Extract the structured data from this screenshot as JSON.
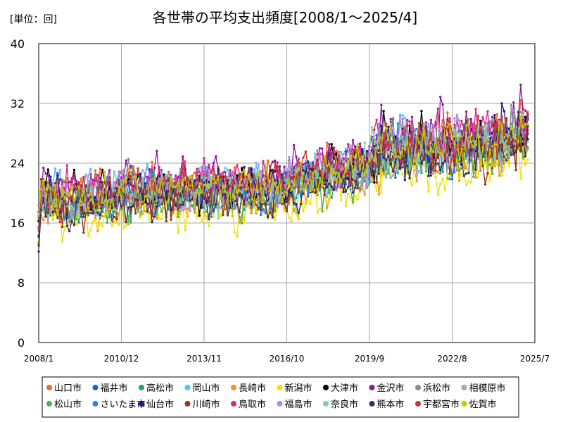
{
  "chart_data": {
    "type": "line",
    "title": "各世帯の平均支出頻度[2008/1～2025/4]",
    "unit_label": "[単位：回]",
    "x_range": [
      "2008-01",
      "2025-07"
    ],
    "x_ticks": [
      "2008/1",
      "2010/12",
      "2013/11",
      "2016/10",
      "2019/9",
      "2022/8",
      "2025/7"
    ],
    "x_tick_months": [
      0,
      35,
      70,
      105,
      140,
      175,
      210
    ],
    "x_last_data_month": 207,
    "y_ticks": [
      0,
      8,
      16,
      24,
      32,
      40
    ],
    "ylim": [
      0,
      40
    ],
    "grid": true,
    "legend_position": "bottom",
    "trend_anchors": [
      {
        "month": 0,
        "value": 19.5
      },
      {
        "month": 24,
        "value": 19.2
      },
      {
        "month": 36,
        "value": 20.2
      },
      {
        "month": 60,
        "value": 20.5
      },
      {
        "month": 84,
        "value": 20.4
      },
      {
        "month": 100,
        "value": 20.6
      },
      {
        "month": 120,
        "value": 22.5
      },
      {
        "month": 138,
        "value": 23.5
      },
      {
        "month": 146,
        "value": 26.0
      },
      {
        "month": 170,
        "value": 26.2
      },
      {
        "month": 190,
        "value": 26.6
      },
      {
        "month": 207,
        "value": 28.5
      }
    ],
    "series": [
      {
        "name": "山口市",
        "color": "#f26522",
        "offset": 0.8
      },
      {
        "name": "福井市",
        "color": "#1f5fd6",
        "offset": -0.6
      },
      {
        "name": "高松市",
        "color": "#1aa37a",
        "offset": -0.8
      },
      {
        "name": "岡山市",
        "color": "#4fc3f7",
        "offset": 0.9
      },
      {
        "name": "長崎市",
        "color": "#f7941d",
        "offset": -1.7
      },
      {
        "name": "新潟市",
        "color": "#f5e100",
        "offset": -2.8
      },
      {
        "name": "大津市",
        "color": "#000000",
        "offset": 0.4
      },
      {
        "name": "金沢市",
        "color": "#8b1a9b",
        "offset": 1.8
      },
      {
        "name": "浜松市",
        "color": "#8c8c8c",
        "offset": 1.0
      },
      {
        "name": "相模原市",
        "color": "#a3a3c8",
        "offset": -0.2
      },
      {
        "name": "松山市",
        "color": "#4caf50",
        "offset": -1.2
      },
      {
        "name": "さいたま市",
        "color": "#2f80ed",
        "offset": -0.4
      },
      {
        "name": "仙台市",
        "color": "#16208f",
        "offset": 0.1
      },
      {
        "name": "川崎市",
        "color": "#8b3a0f",
        "offset": -0.9
      },
      {
        "name": "鳥取市",
        "color": "#e0218a",
        "offset": 1.3
      },
      {
        "name": "福島市",
        "color": "#b38bd6",
        "offset": 0.2
      },
      {
        "name": "奈良市",
        "color": "#7fd1a0",
        "offset": -0.3
      },
      {
        "name": "熊本市",
        "color": "#3a2f5b",
        "offset": -1.0
      },
      {
        "name": "宇都宮市",
        "color": "#c0392b",
        "offset": 0.6
      },
      {
        "name": "佐賀市",
        "color": "#c8c800",
        "offset": 0.3
      }
    ]
  }
}
